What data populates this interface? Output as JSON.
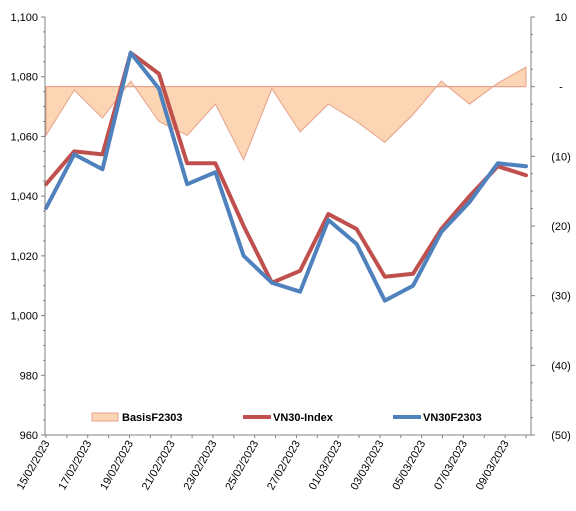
{
  "chart_data": {
    "type": "line",
    "title": "",
    "xlabel": "",
    "ylabel": "",
    "y2label": "",
    "ylim": [
      960,
      1100
    ],
    "y2lim": [
      -50,
      10
    ],
    "yticks": [
      "960",
      "980",
      "1,000",
      "1,020",
      "1,040",
      "1,060",
      "1,080",
      "1,100"
    ],
    "y2ticks": [
      "(50)",
      "(40)",
      "(30)",
      "(20)",
      "(10)",
      "-",
      "10"
    ],
    "xticks": [
      "15/02/2023",
      "17/02/2023",
      "19/02/2023",
      "21/02/2023",
      "23/02/2023",
      "25/02/2023",
      "27/02/2023",
      "01/03/2023",
      "03/03/2023",
      "05/03/2023",
      "07/03/2023",
      "09/03/2023"
    ],
    "x": [
      "15/02/2023",
      "16/02/2023",
      "17/02/2023",
      "20/02/2023",
      "21/02/2023",
      "22/02/2023",
      "23/02/2023",
      "24/02/2023",
      "27/02/2023",
      "28/02/2023",
      "01/03/2023",
      "02/03/2023",
      "03/03/2023",
      "06/03/2023",
      "07/03/2023",
      "08/03/2023",
      "09/03/2023",
      "10/03/2023"
    ],
    "legend_position": "bottom",
    "grid": false,
    "series": [
      {
        "name": "BasisF2303",
        "type": "area",
        "axis": "right",
        "color": "#fcd5b4",
        "stroke": "#e6a08a",
        "values": [
          -7,
          -0.5,
          -4.5,
          0.8,
          -5,
          -7,
          -2.5,
          -10.5,
          -0.3,
          -6.5,
          -2.5,
          -5,
          -8,
          -4,
          0.8,
          -2.5,
          0.5,
          2.8
        ]
      },
      {
        "name": "VN30-Index",
        "type": "line",
        "axis": "left",
        "color": "#c0504d",
        "values": [
          1044,
          1055,
          1054,
          1088,
          1081,
          1051,
          1051,
          1030,
          1011,
          1015,
          1034,
          1029,
          1013,
          1014,
          1029,
          1040,
          1050,
          1047
        ]
      },
      {
        "name": "VN30F2303",
        "type": "line",
        "axis": "left",
        "color": "#4f81bd",
        "values": [
          1036,
          1054,
          1049,
          1088,
          1076,
          1044,
          1048,
          1020,
          1011,
          1008,
          1032,
          1024,
          1005,
          1010,
          1028,
          1038,
          1051,
          1050
        ]
      }
    ]
  }
}
